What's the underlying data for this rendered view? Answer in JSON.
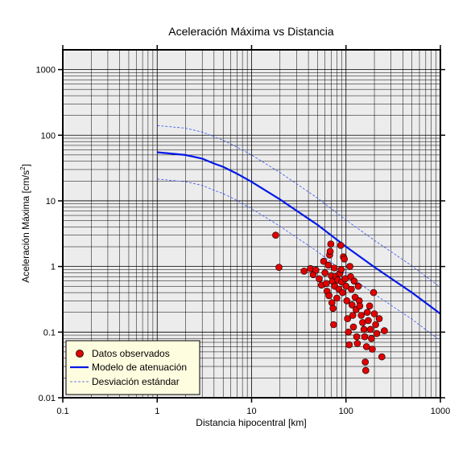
{
  "chart_data": {
    "type": "scatter",
    "title": "Aceleración Máxima vs Distancia",
    "xlabel": "Distancia hipocentral [km]",
    "ylabel_main": "Aceleración Máxima [cm/s",
    "ylabel_sup": "2",
    "ylabel_end": "]",
    "xscale": "log",
    "yscale": "log",
    "xlim": [
      0.1,
      1000
    ],
    "ylim": [
      0.01,
      2000
    ],
    "grid": true,
    "legend_position": "bottom-left",
    "x_ticks": [
      {
        "value": 0.1,
        "label": "0.1"
      },
      {
        "value": 1,
        "label": "1"
      },
      {
        "value": 10,
        "label": "10"
      },
      {
        "value": 100,
        "label": "100"
      },
      {
        "value": 1000,
        "label": "1000"
      }
    ],
    "y_ticks": [
      {
        "value": 0.01,
        "label": "0.01"
      },
      {
        "value": 0.1,
        "label": "0.1"
      },
      {
        "value": 1,
        "label": "1"
      },
      {
        "value": 10,
        "label": "10"
      },
      {
        "value": 100,
        "label": "100"
      },
      {
        "value": 1000,
        "label": "1000"
      }
    ],
    "legend": [
      {
        "key": "observed",
        "label": "Datos observados"
      },
      {
        "key": "model",
        "label": "Modelo de atenuación"
      },
      {
        "key": "std",
        "label": "Desviación estándar"
      }
    ],
    "series": [
      {
        "key": "model",
        "color": "#0018e8",
        "x": [
          1,
          2,
          3,
          4,
          5,
          7,
          10,
          20,
          50,
          100,
          200,
          500,
          1000
        ],
        "y": [
          55,
          50,
          44,
          37,
          33,
          26,
          19.5,
          10.5,
          4.3,
          2.0,
          0.98,
          0.4,
          0.19
        ]
      },
      {
        "key": "std_upper",
        "color": "#3a56f0",
        "x": [
          1,
          2,
          3,
          4,
          5,
          7,
          10,
          20,
          50,
          100,
          200,
          500,
          1000
        ],
        "y": [
          140,
          128,
          112,
          95,
          84,
          66,
          50,
          27,
          11,
          5.1,
          2.5,
          1.02,
          0.48
        ]
      },
      {
        "key": "std_lower",
        "color": "#3a56f0",
        "x": [
          1,
          2,
          3,
          4,
          5,
          7,
          10,
          20,
          50,
          100,
          200,
          500,
          1000
        ],
        "y": [
          21.5,
          19.6,
          17.2,
          14.5,
          12.9,
          10.2,
          7.6,
          4.1,
          1.68,
          0.78,
          0.38,
          0.157,
          0.074
        ]
      },
      {
        "key": "observed",
        "color": "#e00000",
        "points": [
          [
            18,
            3.0
          ],
          [
            19.5,
            0.97
          ],
          [
            36,
            0.85
          ],
          [
            42,
            0.93
          ],
          [
            45,
            0.75
          ],
          [
            48,
            0.88
          ],
          [
            52,
            0.65
          ],
          [
            55,
            0.52
          ],
          [
            58,
            1.2
          ],
          [
            60,
            0.8
          ],
          [
            62,
            0.55
          ],
          [
            63,
            0.42
          ],
          [
            65,
            1.05
          ],
          [
            66,
            0.36
          ],
          [
            67,
            1.5
          ],
          [
            68,
            1.7
          ],
          [
            69,
            2.2
          ],
          [
            70,
            0.72
          ],
          [
            71,
            0.28
          ],
          [
            72,
            0.6
          ],
          [
            73,
            0.23
          ],
          [
            74,
            0.13
          ],
          [
            75,
            0.95
          ],
          [
            76,
            0.5
          ],
          [
            78,
            0.7
          ],
          [
            80,
            0.33
          ],
          [
            82,
            0.62
          ],
          [
            84,
            0.45
          ],
          [
            86,
            0.78
          ],
          [
            88,
            2.1
          ],
          [
            89,
            0.9
          ],
          [
            90,
            0.58
          ],
          [
            92,
            0.4
          ],
          [
            94,
            1.4
          ],
          [
            96,
            1.3
          ],
          [
            98,
            0.65
          ],
          [
            100,
            0.5
          ],
          [
            102,
            0.3
          ],
          [
            104,
            0.16
          ],
          [
            106,
            0.1
          ],
          [
            108,
            0.064
          ],
          [
            110,
            1.0
          ],
          [
            112,
            0.7
          ],
          [
            114,
            0.45
          ],
          [
            116,
            0.26
          ],
          [
            118,
            0.18
          ],
          [
            120,
            0.12
          ],
          [
            122,
            0.6
          ],
          [
            125,
            0.34
          ],
          [
            128,
            0.22
          ],
          [
            130,
            0.085
          ],
          [
            132,
            0.067
          ],
          [
            135,
            0.5
          ],
          [
            138,
            0.3
          ],
          [
            140,
            0.25
          ],
          [
            145,
            0.18
          ],
          [
            150,
            0.14
          ],
          [
            155,
            0.11
          ],
          [
            158,
            0.085
          ],
          [
            160,
            0.035
          ],
          [
            162,
            0.026
          ],
          [
            165,
            0.06
          ],
          [
            168,
            0.2
          ],
          [
            172,
            0.15
          ],
          [
            178,
            0.25
          ],
          [
            182,
            0.11
          ],
          [
            186,
            0.08
          ],
          [
            190,
            0.055
          ],
          [
            196,
            0.4
          ],
          [
            200,
            0.19
          ],
          [
            206,
            0.13
          ],
          [
            212,
            0.095
          ],
          [
            225,
            0.16
          ],
          [
            240,
            0.042
          ],
          [
            255,
            0.105
          ]
        ]
      }
    ]
  }
}
